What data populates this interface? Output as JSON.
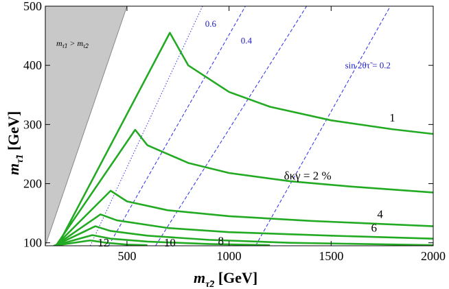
{
  "chart_data": {
    "type": "line",
    "xlabel": "m_{τ̃2} [GeV]",
    "ylabel": "m_{τ̃1} [GeV]",
    "xlabel_main": "m",
    "xlabel_sub": "τ̃2",
    "xlabel_unit": " [GeV]",
    "ylabel_main": "m",
    "ylabel_sub": "τ̃1",
    "ylabel_unit": " [GeV]",
    "xlim": [
      100,
      2000
    ],
    "ylim": [
      95,
      500
    ],
    "xticks": [
      500,
      1000,
      1500,
      2000
    ],
    "yticks": [
      100,
      200,
      300,
      400,
      500
    ],
    "excluded_region": {
      "label": "m_{τ̃1} > m_{τ̃2}",
      "label_main1": "m",
      "label_sub1": "τ̃1",
      "label_mid": " > m",
      "label_sub2": "τ̃2",
      "color": "#c8c8c8"
    },
    "contour_color": "#22aa22",
    "dash_color": "#2a2aee",
    "contours": [
      {
        "label": "1",
        "points": [
          [
            160,
            95
          ],
          [
            710,
            455
          ],
          [
            800,
            400
          ],
          [
            1000,
            355
          ],
          [
            1200,
            330
          ],
          [
            1500,
            307
          ],
          [
            1800,
            292
          ],
          [
            2000,
            284
          ]
        ]
      },
      {
        "label": "δκγ = 2 %",
        "points": [
          [
            152,
            95
          ],
          [
            540,
            291
          ],
          [
            600,
            265
          ],
          [
            800,
            235
          ],
          [
            1000,
            218
          ],
          [
            1300,
            204
          ],
          [
            1600,
            195
          ],
          [
            2000,
            185
          ]
        ]
      },
      {
        "label": "4",
        "points": [
          [
            150,
            95
          ],
          [
            420,
            188
          ],
          [
            500,
            170
          ],
          [
            700,
            155
          ],
          [
            1000,
            145
          ],
          [
            1400,
            137
          ],
          [
            2000,
            128
          ]
        ]
      },
      {
        "label": "6",
        "points": [
          [
            148,
            95
          ],
          [
            370,
            148
          ],
          [
            450,
            138
          ],
          [
            700,
            125
          ],
          [
            1000,
            118
          ],
          [
            1500,
            112
          ],
          [
            2000,
            107
          ]
        ]
      },
      {
        "label": "8",
        "points": [
          [
            145,
            95
          ],
          [
            345,
            128
          ],
          [
            420,
            120
          ],
          [
            600,
            112
          ],
          [
            900,
            105
          ],
          [
            1300,
            100
          ],
          [
            2000,
            96
          ]
        ]
      },
      {
        "label": "10",
        "points": [
          [
            142,
            95
          ],
          [
            330,
            113
          ],
          [
            420,
            107
          ],
          [
            600,
            102
          ],
          [
            900,
            98
          ],
          [
            1200,
            96
          ]
        ]
      },
      {
        "label": "12",
        "points": [
          [
            140,
            95
          ],
          [
            320,
            104
          ],
          [
            400,
            100
          ],
          [
            500,
            97
          ],
          [
            600,
            96
          ]
        ]
      }
    ],
    "contour_label_positions": [
      {
        "text": "1",
        "x": 1800,
        "y": 305
      },
      {
        "text": "δκγ = 2 %",
        "x": 1385,
        "y": 207
      },
      {
        "text": "4",
        "x": 1740,
        "y": 142
      },
      {
        "text": "6",
        "x": 1710,
        "y": 119
      },
      {
        "text": "8",
        "x": 960,
        "y": 97
      },
      {
        "text": "10",
        "x": 710,
        "y": 94
      },
      {
        "text": "12",
        "x": 385,
        "y": 94
      }
    ],
    "mixing_lines": [
      {
        "label": "0.6",
        "style": "dotted",
        "points": [
          [
            320,
            95
          ],
          [
            870,
            500
          ]
        ]
      },
      {
        "label": "0.4",
        "style": "dashed",
        "points": [
          [
            410,
            95
          ],
          [
            1080,
            500
          ]
        ]
      },
      {
        "label": "0.4",
        "style": "dashed",
        "points": [
          [
            640,
            95
          ],
          [
            1380,
            500
          ]
        ]
      },
      {
        "label": "sin 2θτ̃ = 0.2",
        "style": "dashed",
        "points": [
          [
            1130,
            95
          ],
          [
            1790,
            500
          ]
        ]
      }
    ],
    "mixing_label_positions": [
      {
        "text": "0.6",
        "x": 910,
        "y": 465
      },
      {
        "text": "0.4",
        "x": 1085,
        "y": 437
      },
      {
        "text": "sin 2θτ̃ = 0.2",
        "x": 1680,
        "y": 395
      }
    ]
  }
}
